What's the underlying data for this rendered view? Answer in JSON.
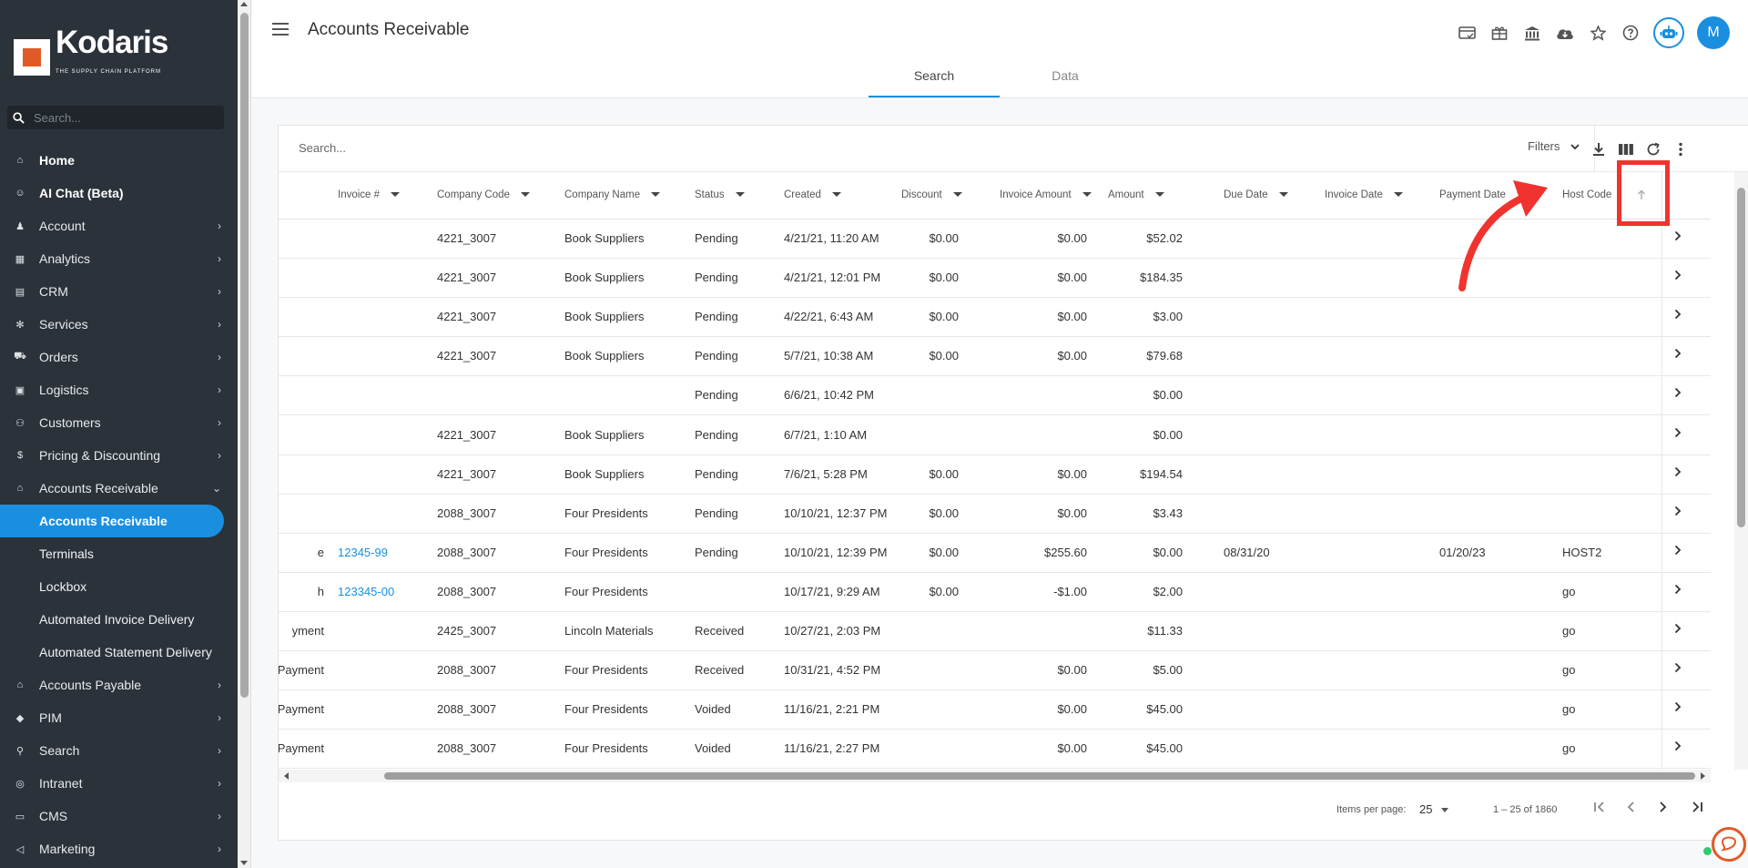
{
  "sidebar": {
    "logo_text": "Kodaris",
    "logo_tagline": "THE SUPPLY CHAIN PLATFORM",
    "search_placeholder": "Search...",
    "items": [
      {
        "label": "Home",
        "icon": "home-icon",
        "chevron": false
      },
      {
        "label": "AI Chat (Beta)",
        "icon": "robot-icon",
        "chevron": false
      },
      {
        "label": "Account",
        "icon": "user-icon",
        "chevron": true
      },
      {
        "label": "Analytics",
        "icon": "chart-icon",
        "chevron": true
      },
      {
        "label": "CRM",
        "icon": "contact-card-icon",
        "chevron": true
      },
      {
        "label": "Services",
        "icon": "gears-icon",
        "chevron": true
      },
      {
        "label": "Orders",
        "icon": "truck-icon",
        "chevron": true
      },
      {
        "label": "Logistics",
        "icon": "shipping-icon",
        "chevron": true
      },
      {
        "label": "Customers",
        "icon": "people-icon",
        "chevron": true
      },
      {
        "label": "Pricing & Discounting",
        "icon": "dollar-icon",
        "chevron": true
      },
      {
        "label": "Accounts Receivable",
        "icon": "bank-icon",
        "chevron": true,
        "expanded": true
      }
    ],
    "sub_items": [
      {
        "label": "Accounts Receivable",
        "active": true
      },
      {
        "label": "Terminals",
        "active": false
      },
      {
        "label": "Lockbox",
        "active": false
      },
      {
        "label": "Automated Invoice Delivery",
        "active": false
      },
      {
        "label": "Automated Statement Delivery",
        "active": false
      }
    ],
    "items_after": [
      {
        "label": "Accounts Payable",
        "icon": "bank-icon"
      },
      {
        "label": "PIM",
        "icon": "tag-icon"
      },
      {
        "label": "Search",
        "icon": "search-icon"
      },
      {
        "label": "Intranet",
        "icon": "globe-icon"
      },
      {
        "label": "CMS",
        "icon": "monitor-icon"
      },
      {
        "label": "Marketing",
        "icon": "megaphone-icon"
      }
    ]
  },
  "header": {
    "title": "Accounts Receivable",
    "avatar_initial": "M",
    "tabs": [
      "Search",
      "Data"
    ],
    "active_tab": "Search"
  },
  "grid": {
    "search_placeholder": "Search...",
    "filters_label": "Filters",
    "columns": [
      "Invoice #",
      "Company Code",
      "Company Name",
      "Status",
      "Created",
      "Discount",
      "Invoice Amount",
      "Amount",
      "Due Date",
      "Invoice Date",
      "Payment Date",
      "Host Code"
    ],
    "rows": [
      {
        "lead": "",
        "invoice": "",
        "code": "4221_3007",
        "name": "Book Suppliers",
        "status": "Pending",
        "created": "4/21/21, 11:20 AM",
        "discount": "$0.00",
        "inv_amount": "$0.00",
        "amount": "$52.02",
        "due": "",
        "inv_date": "",
        "pay_date": "",
        "host": ""
      },
      {
        "lead": "",
        "invoice": "",
        "code": "4221_3007",
        "name": "Book Suppliers",
        "status": "Pending",
        "created": "4/21/21, 12:01 PM",
        "discount": "$0.00",
        "inv_amount": "$0.00",
        "amount": "$184.35",
        "due": "",
        "inv_date": "",
        "pay_date": "",
        "host": ""
      },
      {
        "lead": "",
        "invoice": "",
        "code": "4221_3007",
        "name": "Book Suppliers",
        "status": "Pending",
        "created": "4/22/21, 6:43 AM",
        "discount": "$0.00",
        "inv_amount": "$0.00",
        "amount": "$3.00",
        "due": "",
        "inv_date": "",
        "pay_date": "",
        "host": ""
      },
      {
        "lead": "",
        "invoice": "",
        "code": "4221_3007",
        "name": "Book Suppliers",
        "status": "Pending",
        "created": "5/7/21, 10:38 AM",
        "discount": "$0.00",
        "inv_amount": "$0.00",
        "amount": "$79.68",
        "due": "",
        "inv_date": "",
        "pay_date": "",
        "host": ""
      },
      {
        "lead": "",
        "invoice": "",
        "code": "",
        "name": "",
        "status": "Pending",
        "created": "6/6/21, 10:42 PM",
        "discount": "",
        "inv_amount": "",
        "amount": "$0.00",
        "due": "",
        "inv_date": "",
        "pay_date": "",
        "host": ""
      },
      {
        "lead": "",
        "invoice": "",
        "code": "4221_3007",
        "name": "Book Suppliers",
        "status": "Pending",
        "created": "6/7/21, 1:10 AM",
        "discount": "",
        "inv_amount": "",
        "amount": "$0.00",
        "due": "",
        "inv_date": "",
        "pay_date": "",
        "host": ""
      },
      {
        "lead": "",
        "invoice": "",
        "code": "4221_3007",
        "name": "Book Suppliers",
        "status": "Pending",
        "created": "7/6/21, 5:28 PM",
        "discount": "$0.00",
        "inv_amount": "$0.00",
        "amount": "$194.54",
        "due": "",
        "inv_date": "",
        "pay_date": "",
        "host": ""
      },
      {
        "lead": "",
        "invoice": "",
        "code": "2088_3007",
        "name": "Four Presidents",
        "status": "Pending",
        "created": "10/10/21, 12:37 PM",
        "discount": "$0.00",
        "inv_amount": "$0.00",
        "amount": "$3.43",
        "due": "",
        "inv_date": "",
        "pay_date": "",
        "host": ""
      },
      {
        "lead": "e",
        "invoice": "12345-99",
        "code": "2088_3007",
        "name": "Four Presidents",
        "status": "Pending",
        "created": "10/10/21, 12:39 PM",
        "discount": "$0.00",
        "inv_amount": "$255.60",
        "amount": "$0.00",
        "due": "08/31/20",
        "inv_date": "",
        "pay_date": "01/20/23",
        "host": "HOST2"
      },
      {
        "lead": "h",
        "invoice": "123345-00",
        "code": "2088_3007",
        "name": "Four Presidents",
        "status": "",
        "created": "10/17/21, 9:29 AM",
        "discount": "$0.00",
        "inv_amount": "-$1.00",
        "amount": "$2.00",
        "due": "",
        "inv_date": "",
        "pay_date": "",
        "host": "go"
      },
      {
        "lead": "yment",
        "invoice": "",
        "code": "2425_3007",
        "name": "Lincoln Materials",
        "status": "Received",
        "created": "10/27/21, 2:03 PM",
        "discount": "",
        "inv_amount": "",
        "amount": "$11.33",
        "due": "",
        "inv_date": "",
        "pay_date": "",
        "host": "go"
      },
      {
        "lead": "Payment",
        "invoice": "",
        "code": "2088_3007",
        "name": "Four Presidents",
        "status": "Received",
        "created": "10/31/21, 4:52 PM",
        "discount": "",
        "inv_amount": "$0.00",
        "amount": "$5.00",
        "due": "",
        "inv_date": "",
        "pay_date": "",
        "host": "go"
      },
      {
        "lead": "Payment",
        "invoice": "",
        "code": "2088_3007",
        "name": "Four Presidents",
        "status": "Voided",
        "created": "11/16/21, 2:21 PM",
        "discount": "",
        "inv_amount": "$0.00",
        "amount": "$45.00",
        "due": "",
        "inv_date": "",
        "pay_date": "",
        "host": "go"
      },
      {
        "lead": "Payment",
        "invoice": "",
        "code": "2088_3007",
        "name": "Four Presidents",
        "status": "Voided",
        "created": "11/16/21, 2:27 PM",
        "discount": "",
        "inv_amount": "$0.00",
        "amount": "$45.00",
        "due": "",
        "inv_date": "",
        "pay_date": "",
        "host": "go"
      }
    ]
  },
  "pager": {
    "items_per_page_label": "Items per page:",
    "items_per_page": "25",
    "range": "1 – 25 of 1860"
  },
  "colors": {
    "accent": "#1a8fe0",
    "sidebar": "#2b323a",
    "highlight": "#f0332e"
  }
}
